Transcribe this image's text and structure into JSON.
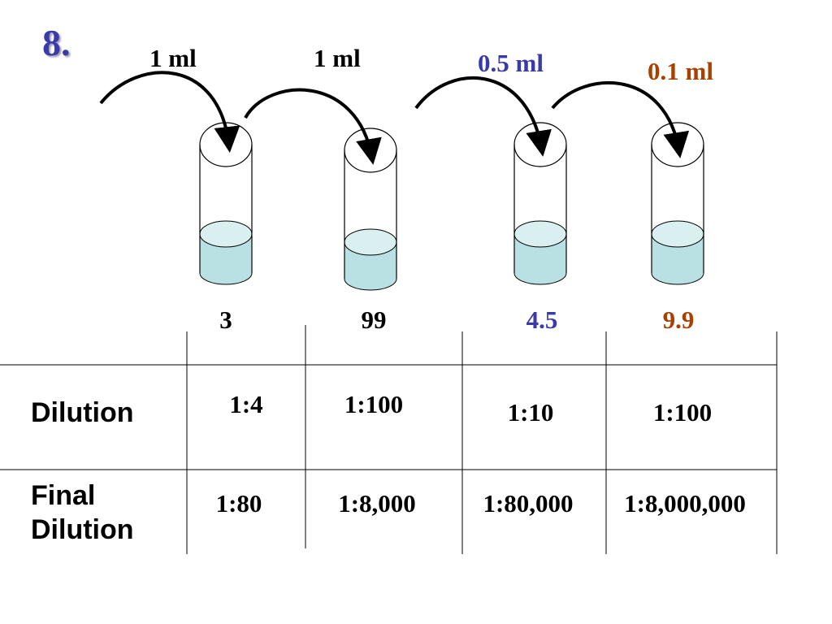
{
  "step_number": "8.",
  "colors": {
    "black": "#000000",
    "blue": "#3a3aa8",
    "brown": "#a84000",
    "liquid": "#b9e1e4",
    "liquid_top": "#d9eff0"
  },
  "transfers": [
    {
      "volume": "1 ml",
      "color": "#000000"
    },
    {
      "volume": "1 ml",
      "color": "#000000"
    },
    {
      "volume": "0.5 ml",
      "color": "#3a3aa8"
    },
    {
      "volume": "0.1 ml",
      "color": "#a84000"
    }
  ],
  "tubes": [
    {
      "label": "3",
      "color": "#000000"
    },
    {
      "label": "99",
      "color": "#000000"
    },
    {
      "label": "4.5",
      "color": "#3a3aa8"
    },
    {
      "label": "9.9",
      "color": "#a84000"
    }
  ],
  "table": {
    "dilution_header": "Dilution",
    "final_header_line1": "Final",
    "final_header_line2": "Dilution",
    "dilution": [
      "1:4",
      "1:100",
      "1:10",
      "1:100"
    ],
    "final_dilution": [
      "1:80",
      "1:8,000",
      "1:80,000",
      "1:8,000,000"
    ]
  }
}
